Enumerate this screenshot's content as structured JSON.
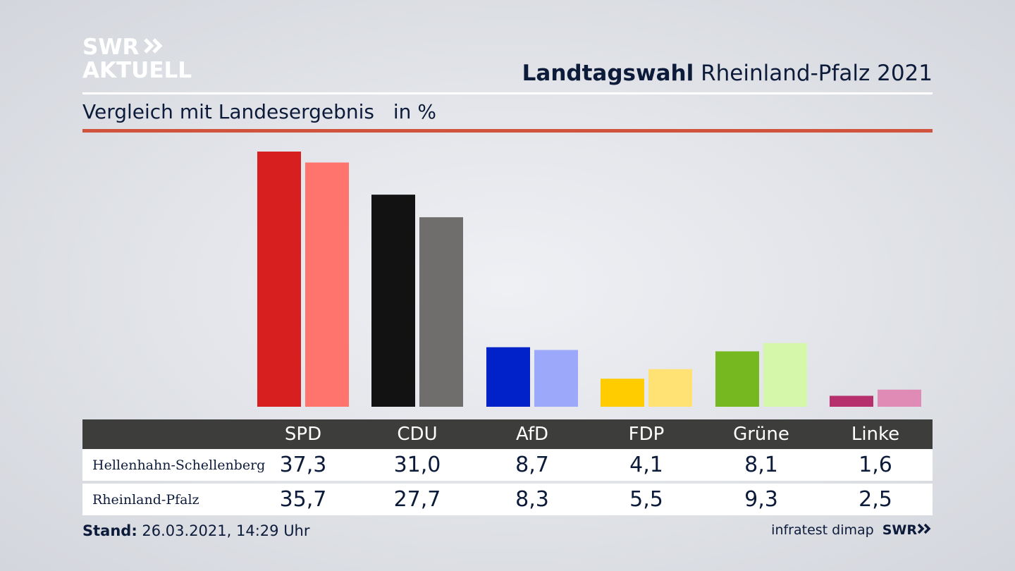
{
  "logo": {
    "line1": "SWR",
    "line2": "AKTUELL",
    "icon": "double-chevron-icon"
  },
  "header": {
    "title_bold": "Landtagswahl",
    "title_rest": "Rheinland-Pfalz 2021",
    "subtitle": "Vergleich mit Landesergebnis",
    "unit": "in %"
  },
  "colors": {
    "accent_rule": "#d0533d",
    "table_header": "#3d3d3b"
  },
  "chart_data": {
    "type": "bar",
    "categories": [
      "SPD",
      "CDU",
      "AfD",
      "FDP",
      "Grüne",
      "Linke"
    ],
    "series": [
      {
        "name": "Hellenhahn-Schellenberg",
        "values": [
          37.3,
          31.0,
          8.7,
          4.1,
          8.1,
          1.6
        ],
        "colors": [
          "#d71f1f",
          "#121212",
          "#0022c8",
          "#ffcc00",
          "#76b820",
          "#b7306e"
        ]
      },
      {
        "name": "Rheinland-Pfalz",
        "values": [
          35.7,
          27.7,
          8.3,
          5.5,
          9.3,
          2.5
        ],
        "colors": [
          "#ff746c",
          "#6f6e6c",
          "#9ca9fb",
          "#ffe174",
          "#d5f7a9",
          "#e08bb6"
        ]
      }
    ],
    "ylim": [
      0,
      37.3
    ],
    "grid": false
  },
  "table": {
    "headers": [
      "SPD",
      "CDU",
      "AfD",
      "FDP",
      "Grüne",
      "Linke"
    ],
    "rows": [
      {
        "label": "Hellenhahn-Schellenberg",
        "values": [
          "37,3",
          "31,0",
          "8,7",
          "4,1",
          "8,1",
          "1,6"
        ]
      },
      {
        "label": "Rheinland-Pfalz",
        "values": [
          "35,7",
          "27,7",
          "8,3",
          "5,5",
          "9,3",
          "2,5"
        ]
      }
    ]
  },
  "footer": {
    "stand_label": "Stand:",
    "stand_value": "26.03.2021, 14:29 Uhr",
    "source": "infratest dimap",
    "brand": "SWR",
    "brand_icon": "double-chevron-icon"
  }
}
